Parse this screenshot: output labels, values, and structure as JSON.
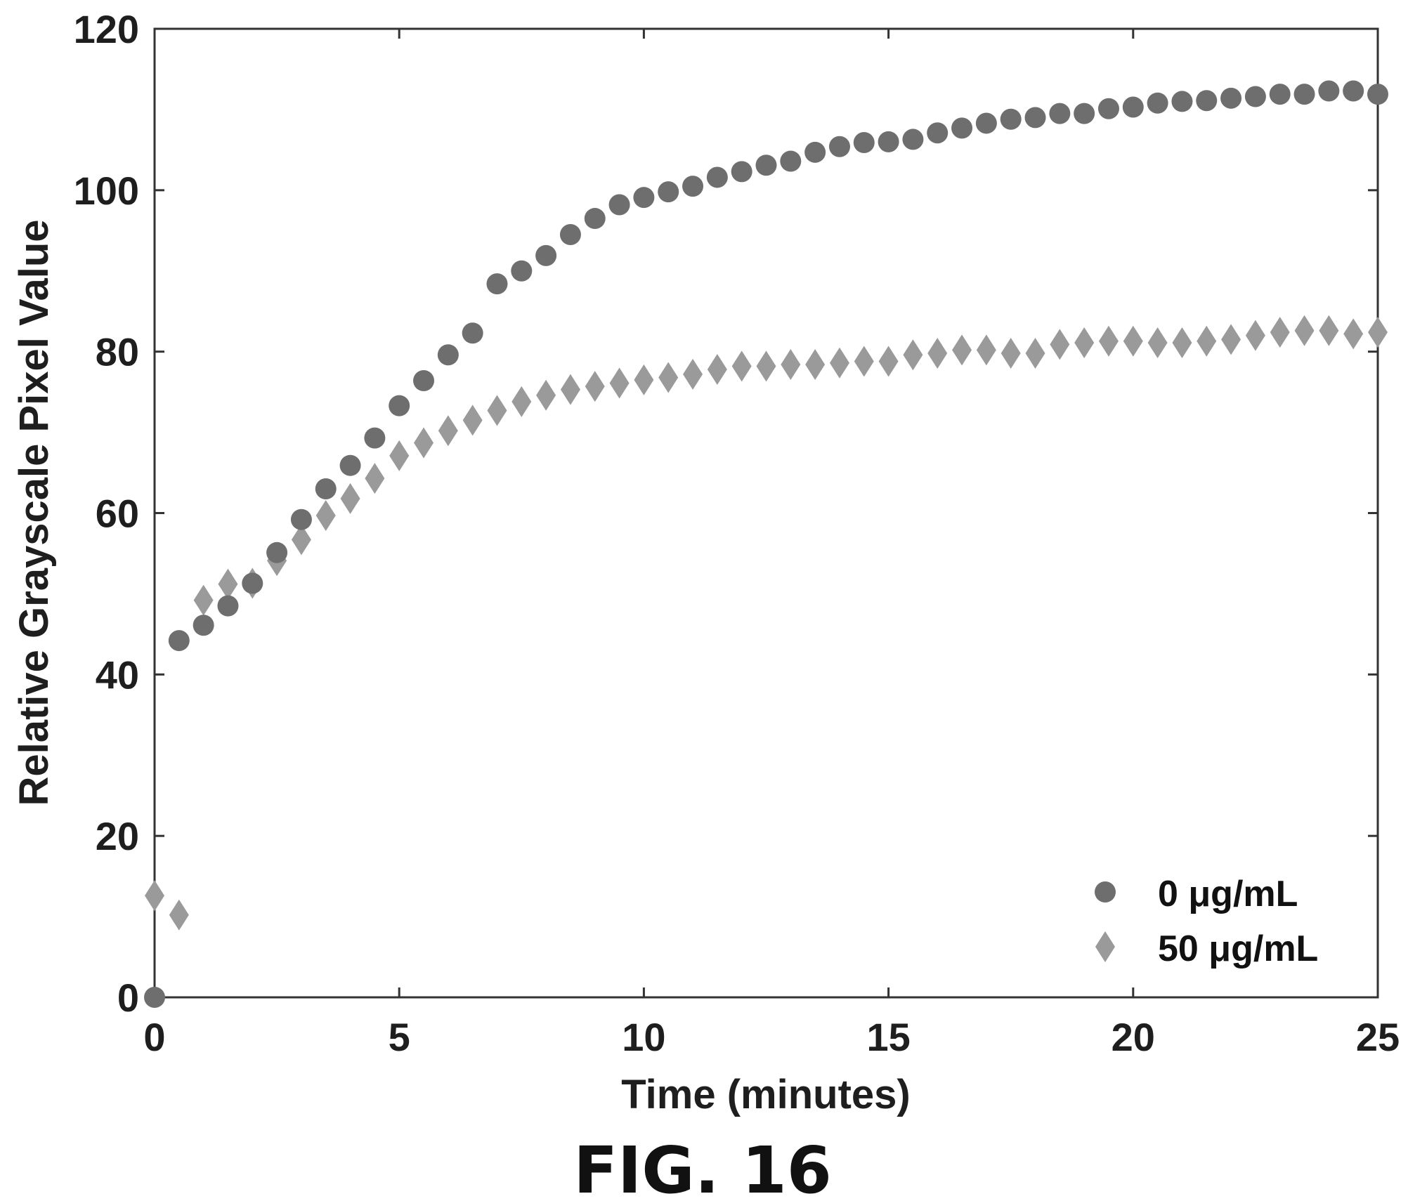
{
  "figure_label": "FIG. 16",
  "chart_data": {
    "type": "scatter",
    "xlabel": "Time (minutes)",
    "ylabel": "Relative Grayscale Pixel Value",
    "xlim": [
      0,
      25
    ],
    "ylim": [
      0,
      120
    ],
    "xticks": [
      0,
      5,
      10,
      15,
      20,
      25
    ],
    "yticks": [
      0,
      20,
      40,
      60,
      80,
      100,
      120
    ],
    "grid": false,
    "legend_position": "bottom-right",
    "series": [
      {
        "name": "0 μg/mL",
        "marker": "circle",
        "color": "#6e6e6e",
        "points": [
          [
            0,
            0
          ],
          [
            0.5,
            44.2
          ],
          [
            1,
            46.1
          ],
          [
            1.5,
            48.5
          ],
          [
            2,
            51.3
          ],
          [
            2.5,
            55.1
          ],
          [
            3,
            59.2
          ],
          [
            3.5,
            63
          ],
          [
            4,
            65.9
          ],
          [
            4.5,
            69.3
          ],
          [
            5,
            73.3
          ],
          [
            5.5,
            76.4
          ],
          [
            6,
            79.6
          ],
          [
            6.5,
            82.3
          ],
          [
            7,
            88.4
          ],
          [
            7.5,
            90
          ],
          [
            8,
            91.9
          ],
          [
            8.5,
            94.5
          ],
          [
            9,
            96.5
          ],
          [
            9.5,
            98.2
          ],
          [
            10,
            99.1
          ],
          [
            10.5,
            99.8
          ],
          [
            11,
            100.5
          ],
          [
            11.5,
            101.6
          ],
          [
            12,
            102.3
          ],
          [
            12.5,
            103.1
          ],
          [
            13,
            103.6
          ],
          [
            13.5,
            104.7
          ],
          [
            14,
            105.4
          ],
          [
            14.5,
            105.9
          ],
          [
            15,
            106
          ],
          [
            15.5,
            106.3
          ],
          [
            16,
            107.1
          ],
          [
            16.5,
            107.7
          ],
          [
            17,
            108.3
          ],
          [
            17.5,
            108.8
          ],
          [
            18,
            109
          ],
          [
            18.5,
            109.5
          ],
          [
            19,
            109.5
          ],
          [
            19.5,
            110.1
          ],
          [
            20,
            110.3
          ],
          [
            20.5,
            110.8
          ],
          [
            21,
            111
          ],
          [
            21.5,
            111.1
          ],
          [
            22,
            111.4
          ],
          [
            22.5,
            111.6
          ],
          [
            23,
            111.9
          ],
          [
            23.5,
            111.9
          ],
          [
            24,
            112.3
          ],
          [
            24.5,
            112.3
          ],
          [
            25,
            111.9
          ]
        ]
      },
      {
        "name": "50 μg/mL",
        "marker": "diamond",
        "color": "#9a9a9a",
        "points": [
          [
            0,
            12.6
          ],
          [
            0.5,
            10.2
          ],
          [
            1,
            49.2
          ],
          [
            1.5,
            51.2
          ],
          [
            2,
            51.3
          ],
          [
            2.5,
            54.1
          ],
          [
            3,
            56.7
          ],
          [
            3.5,
            59.7
          ],
          [
            4,
            61.8
          ],
          [
            4.5,
            64.3
          ],
          [
            5,
            67.1
          ],
          [
            5.5,
            68.7
          ],
          [
            6,
            70.2
          ],
          [
            6.5,
            71.5
          ],
          [
            7,
            72.7
          ],
          [
            7.5,
            73.8
          ],
          [
            8,
            74.6
          ],
          [
            8.5,
            75.3
          ],
          [
            9,
            75.7
          ],
          [
            9.5,
            76.1
          ],
          [
            10,
            76.5
          ],
          [
            10.5,
            76.8
          ],
          [
            11,
            77.2
          ],
          [
            11.5,
            77.8
          ],
          [
            12,
            78.2
          ],
          [
            12.5,
            78.2
          ],
          [
            13,
            78.4
          ],
          [
            13.5,
            78.4
          ],
          [
            14,
            78.6
          ],
          [
            14.5,
            78.8
          ],
          [
            15,
            78.8
          ],
          [
            15.5,
            79.6
          ],
          [
            16,
            79.8
          ],
          [
            16.5,
            80.2
          ],
          [
            17,
            80.2
          ],
          [
            17.5,
            79.8
          ],
          [
            18,
            79.8
          ],
          [
            18.5,
            80.9
          ],
          [
            19,
            81.1
          ],
          [
            19.5,
            81.3
          ],
          [
            20,
            81.3
          ],
          [
            20.5,
            81.1
          ],
          [
            21,
            81.1
          ],
          [
            21.5,
            81.3
          ],
          [
            22,
            81.5
          ],
          [
            22.5,
            82
          ],
          [
            23,
            82.4
          ],
          [
            23.5,
            82.6
          ],
          [
            24,
            82.6
          ],
          [
            24.5,
            82.2
          ],
          [
            25,
            82.4
          ]
        ]
      }
    ]
  }
}
